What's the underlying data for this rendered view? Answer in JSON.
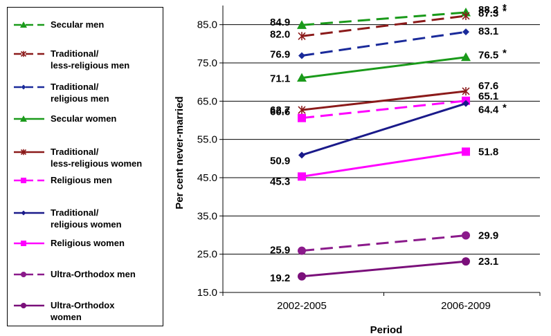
{
  "chart_data": {
    "type": "line",
    "categories": [
      "2002-2005",
      "2006-2009"
    ],
    "xlabel": "Period",
    "ylabel": "Per cent never-married",
    "ylim": [
      15.0,
      90.0
    ],
    "yticks": [
      "15.0",
      "25.0",
      "35.0",
      "45.0",
      "55.0",
      "65.0",
      "75.0",
      "85.0"
    ],
    "grid": true,
    "legend_position": "left",
    "series": [
      {
        "name": "Secular men",
        "values": [
          84.9,
          88.2
        ],
        "labels": [
          "84.9",
          "88.2"
        ],
        "star": "*",
        "color": "#1a9a1a",
        "dash": true,
        "marker": "triangle"
      },
      {
        "name": "Traditional/ less-religious men",
        "values": [
          82.0,
          87.3
        ],
        "labels": [
          "82.0",
          "87.3"
        ],
        "star": "*",
        "color": "#8b1a1a",
        "dash": true,
        "marker": "asterisk"
      },
      {
        "name": "Traditional/ religious men",
        "values": [
          76.9,
          83.1
        ],
        "labels": [
          "76.9",
          "83.1"
        ],
        "star": "",
        "color": "#1a2a9a",
        "dash": true,
        "marker": "diamond"
      },
      {
        "name": "Secular women",
        "values": [
          71.1,
          76.5
        ],
        "labels": [
          "71.1",
          "76.5"
        ],
        "star": "*",
        "color": "#1a9a1a",
        "dash": false,
        "marker": "triangle"
      },
      {
        "name": "Traditional/ less-religious women",
        "values": [
          62.7,
          67.6
        ],
        "labels": [
          "62.7",
          "67.6"
        ],
        "star": "",
        "color": "#8b1a1a",
        "dash": false,
        "marker": "asterisk"
      },
      {
        "name": "Religious men",
        "values": [
          60.6,
          65.1
        ],
        "labels": [
          "60.6",
          "65.1"
        ],
        "star": "",
        "color": "#ff00ff",
        "dash": true,
        "marker": "square"
      },
      {
        "name": "Traditional/ religious women",
        "values": [
          50.9,
          64.4
        ],
        "labels": [
          "50.9",
          "64.4"
        ],
        "star": "*",
        "color": "#1a1a8a",
        "dash": false,
        "marker": "diamond"
      },
      {
        "name": "Religious women",
        "values": [
          45.3,
          51.8
        ],
        "labels": [
          "45.3",
          "51.8"
        ],
        "star": "",
        "color": "#ff00ff",
        "dash": false,
        "marker": "square"
      },
      {
        "name": "Ultra-Orthodox men",
        "values": [
          25.9,
          29.9
        ],
        "labels": [
          "25.9",
          "29.9"
        ],
        "star": "",
        "color": "#8b1a8b",
        "dash": true,
        "marker": "circle"
      },
      {
        "name": "Ultra-Orthodox women",
        "values": [
          19.2,
          23.1
        ],
        "labels": [
          "19.2",
          "23.1"
        ],
        "star": "",
        "color": "#7a0f7a",
        "dash": false,
        "marker": "circle"
      }
    ]
  },
  "legend": {
    "items": [
      {
        "lines": [
          "Secular men"
        ]
      },
      {
        "lines": [
          "Traditional/",
          "less-religious men"
        ]
      },
      {
        "lines": [
          "Traditional/",
          "religious men"
        ]
      },
      {
        "lines": [
          "Secular women"
        ]
      },
      {
        "lines": [
          "Traditional/",
          "less-religious women"
        ]
      },
      {
        "lines": [
          "Religious men"
        ]
      },
      {
        "lines": [
          "Traditional/",
          "religious women"
        ]
      },
      {
        "lines": [
          "Religious women"
        ]
      },
      {
        "lines": [
          "Ultra-Orthodox men"
        ]
      },
      {
        "lines": [
          "Ultra-Orthodox",
          "women"
        ]
      }
    ]
  }
}
